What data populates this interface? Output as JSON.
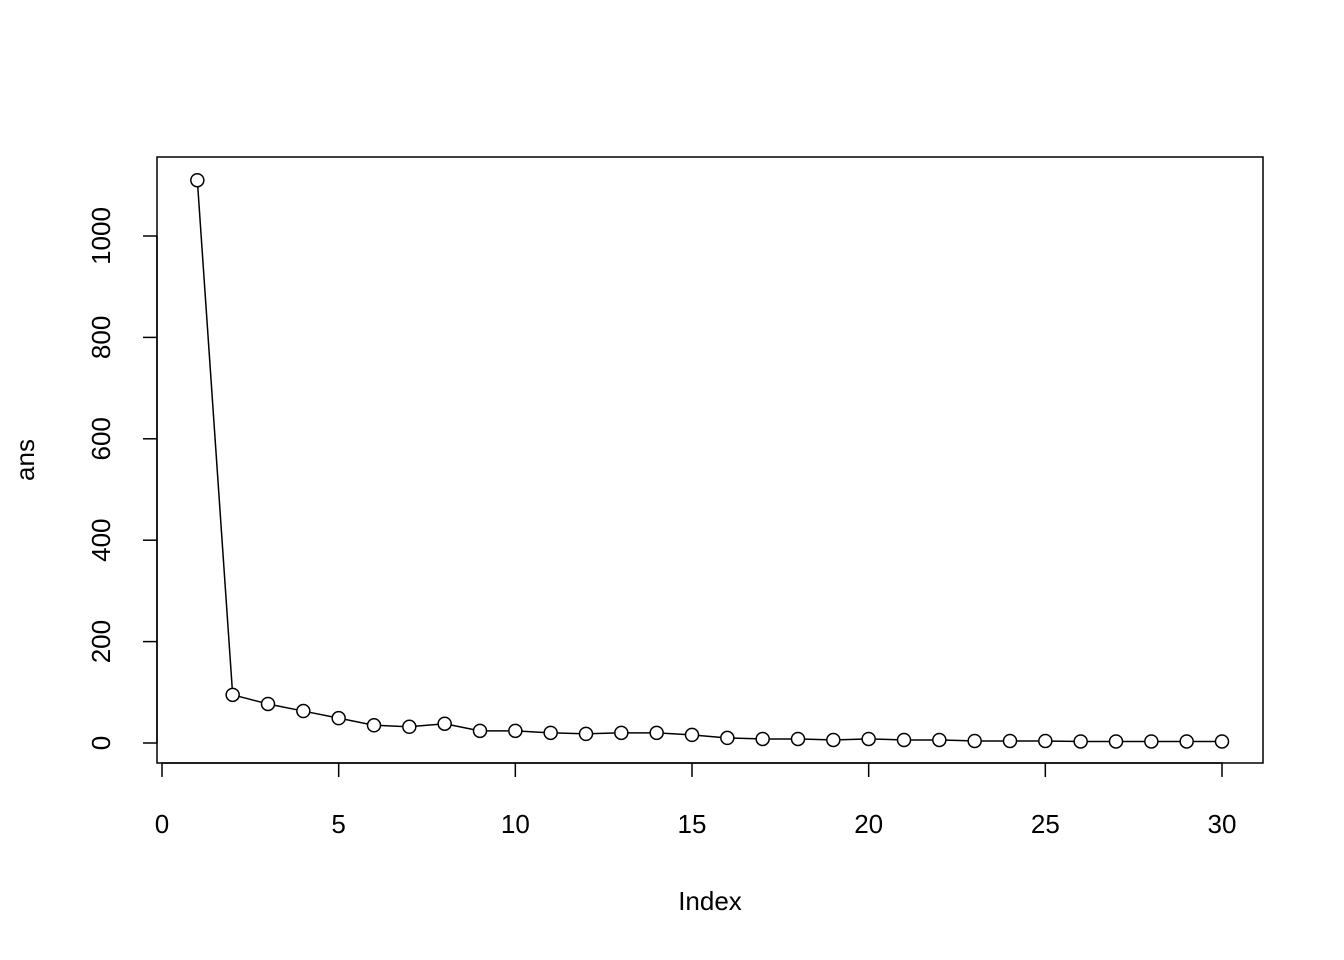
{
  "chart_data": {
    "type": "line",
    "title": "",
    "xlabel": "Index",
    "ylabel": "ans",
    "xlim": [
      0,
      30
    ],
    "ylim": [
      0,
      1110
    ],
    "grid": false,
    "marker": "open-circle",
    "line_color": "#000000",
    "x_ticks": [
      "0",
      "5",
      "10",
      "15",
      "20",
      "25",
      "30"
    ],
    "y_ticks": [
      "0",
      "200",
      "400",
      "600",
      "800",
      "1000"
    ],
    "x": [
      1,
      2,
      3,
      4,
      5,
      6,
      7,
      8,
      9,
      10,
      11,
      12,
      13,
      14,
      15,
      16,
      17,
      18,
      19,
      20,
      21,
      22,
      23,
      24,
      25,
      26,
      27,
      28,
      29,
      30
    ],
    "y": [
      1110,
      95,
      77,
      63,
      49,
      35,
      32,
      38,
      24,
      24,
      20,
      18,
      20,
      20,
      16,
      10,
      8,
      8,
      6,
      8,
      6,
      6,
      4,
      4,
      4,
      3,
      3,
      3,
      3,
      3
    ]
  }
}
